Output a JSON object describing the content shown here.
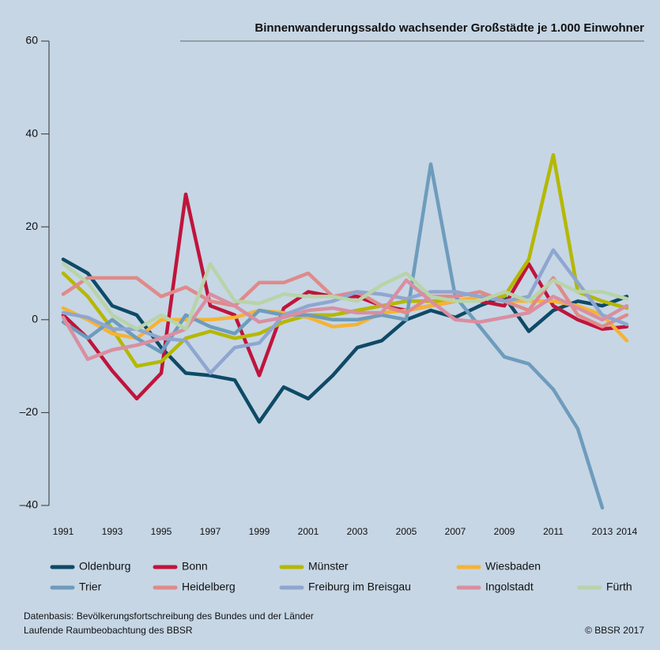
{
  "chart_data": {
    "type": "line",
    "title": "Binnenwanderungssaldo wachsender Großstädte je 1.000 Einwohner",
    "x": [
      1991,
      1992,
      1993,
      1994,
      1995,
      1996,
      1997,
      1998,
      1999,
      2000,
      2001,
      2002,
      2003,
      2004,
      2005,
      2006,
      2007,
      2008,
      2009,
      2010,
      2011,
      2012,
      2013,
      2014
    ],
    "xlim": [
      1991,
      2014
    ],
    "xticks": [
      1991,
      1993,
      1995,
      1997,
      1999,
      2001,
      2003,
      2005,
      2007,
      2009,
      2011,
      2013,
      2014
    ],
    "ylim": [
      -40,
      60
    ],
    "yticks": [
      {
        "value": -40,
        "label": "–40"
      },
      {
        "value": -20,
        "label": "–20"
      },
      0,
      20,
      40,
      60
    ],
    "series": [
      {
        "name": "Oldenburg",
        "color": "#0e4a66",
        "values": [
          13,
          10,
          3,
          1,
          -6,
          -11.5,
          -12,
          -13,
          -22,
          -14.5,
          -17,
          -12,
          -6,
          -4.5,
          0,
          2,
          0.5,
          3,
          5,
          -2.5,
          2,
          4,
          3,
          5
        ]
      },
      {
        "name": "Bonn",
        "color": "#c0143c",
        "values": [
          1,
          -4,
          -11,
          -17,
          -11.5,
          27,
          3,
          1,
          -12,
          2.5,
          6,
          5,
          5,
          3,
          2,
          3,
          4,
          4,
          3,
          12,
          3,
          0,
          -2,
          -1.5
        ]
      },
      {
        "name": "Münster",
        "color": "#b5b800",
        "values": [
          10,
          5,
          -2,
          -10,
          -9,
          -4,
          -2.5,
          -4,
          -3,
          -0.5,
          1,
          1,
          2,
          3,
          4,
          4,
          4,
          5,
          5,
          13,
          35.5,
          6,
          4,
          2.5
        ]
      },
      {
        "name": "Wiesbaden",
        "color": "#f5b335",
        "values": [
          2.5,
          0,
          -3,
          -4,
          0,
          0,
          0,
          0.5,
          2,
          1.5,
          0.5,
          -1.5,
          -1,
          1.5,
          2,
          3,
          4,
          5,
          4,
          4,
          4,
          3,
          1,
          -4.5
        ]
      },
      {
        "name": "Trier",
        "color": "#6e9cbc",
        "values": [
          -0.5,
          -4,
          0,
          -4,
          -7,
          1,
          -1.5,
          -3,
          2,
          1,
          1,
          0,
          0,
          1,
          0,
          33.5,
          5,
          -1.5,
          -8,
          -9.5,
          -15,
          -23.5,
          -40.5,
          null
        ]
      },
      {
        "name": "Heidelberg",
        "color": "#e08a8a",
        "values": [
          5.5,
          9,
          9,
          9,
          5,
          7,
          4,
          3,
          8,
          8,
          10,
          5,
          6,
          3,
          1.5,
          5,
          5,
          6,
          4,
          2,
          9,
          1,
          -1.5,
          1
        ]
      },
      {
        "name": "Freiburg im Breisgau",
        "color": "#8fa6d0",
        "values": [
          1.5,
          0.5,
          -2,
          -2,
          -4,
          -4.5,
          -11.5,
          -6,
          -5,
          1,
          3,
          4,
          6,
          5.5,
          4.5,
          6,
          6,
          5,
          4,
          5,
          15,
          8,
          1,
          -1
        ]
      },
      {
        "name": "Ingolstadt",
        "color": "#d98fa0",
        "values": [
          0.5,
          -8.5,
          -6.5,
          -5.5,
          -4,
          -2,
          5.5,
          3,
          -0.5,
          0.5,
          2,
          2.5,
          1.5,
          1.5,
          8.5,
          4,
          0,
          -0.5,
          0.5,
          1.5,
          5,
          2.5,
          0,
          3
        ]
      },
      {
        "name": "Fürth",
        "color": "#b8d4a8",
        "values": [
          12,
          8,
          1,
          -2,
          1,
          -2,
          12,
          4,
          3.5,
          5.5,
          5,
          5,
          4,
          7.5,
          10,
          5,
          4,
          4,
          6,
          4,
          8.5,
          6,
          6,
          4.5
        ]
      }
    ],
    "source": [
      "Datenbasis: Bevölkerungsfortschreibung des Bundes und der Länder",
      "Laufende Raumbeobachtung des BBSR"
    ],
    "copyright": "© BBSR 2017"
  }
}
